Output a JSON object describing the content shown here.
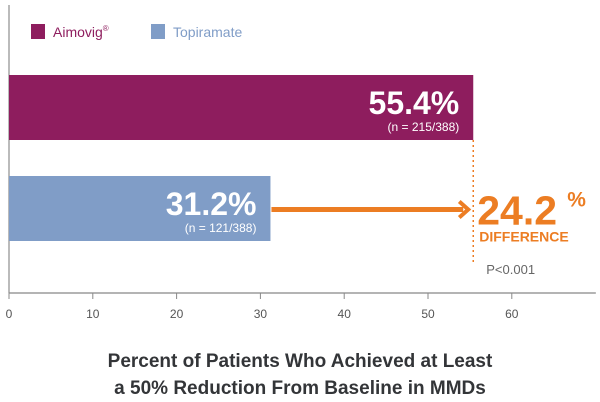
{
  "chart_data": {
    "type": "bar",
    "orientation": "horizontal",
    "title_lines": [
      "Percent of Patients Who Achieved at Least",
      "a 50% Reduction From Baseline in MMDs"
    ],
    "series": [
      {
        "name": "Aimovig",
        "name_sup": "®",
        "value": 55.4,
        "label": "55.4%",
        "n_label": "(n = 215/388)",
        "color": "#8e1d5e"
      },
      {
        "name": "Topiramate",
        "value": 31.2,
        "label": "31.2%",
        "n_label": "(n = 121/388)",
        "color": "#809dc7"
      }
    ],
    "difference": {
      "value": "24.2",
      "unit": "%",
      "label": "DIFFERENCE",
      "p_value": "P<0.001",
      "color": "#ec7d23"
    },
    "xlim": [
      0,
      68
    ],
    "xticks": [
      0,
      10,
      20,
      30,
      40,
      50,
      60
    ],
    "legend": "top-left",
    "grid": false
  }
}
